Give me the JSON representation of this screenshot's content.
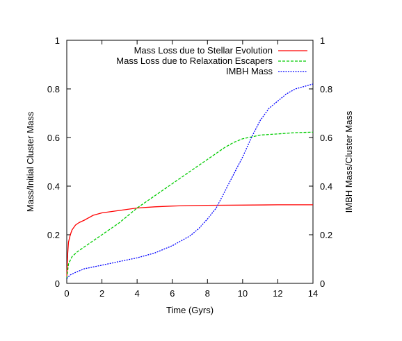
{
  "chart_data": {
    "type": "line",
    "xlabel": "Time (Gyrs)",
    "ylabel": "Mass/Initial Cluster Mass",
    "y2label": "IMBH Mass/Cluster Mass",
    "xlim": [
      0,
      14
    ],
    "ylim": [
      0,
      1
    ],
    "y2lim": [
      0,
      1
    ],
    "xticks": [
      "0",
      "2",
      "4",
      "6",
      "8",
      "10",
      "12",
      "14"
    ],
    "yticks": [
      "0",
      "0.2",
      "0.4",
      "0.6",
      "0.8",
      "1"
    ],
    "y2ticks": [
      "0",
      "0.2",
      "0.4",
      "0.6",
      "0.8",
      "1"
    ],
    "grid": false,
    "legend_position": "top-right",
    "series": [
      {
        "name": "Mass Loss due to Stellar Evolution",
        "color": "#ff0000",
        "style": "solid",
        "axis": "left",
        "x": [
          0,
          0.05,
          0.1,
          0.2,
          0.3,
          0.5,
          0.7,
          1.0,
          1.5,
          2.0,
          3.0,
          4.0,
          5.0,
          6.0,
          7.0,
          8.0,
          10.0,
          12.0,
          14.0
        ],
        "y": [
          0.02,
          0.12,
          0.17,
          0.2,
          0.22,
          0.24,
          0.25,
          0.26,
          0.28,
          0.29,
          0.3,
          0.31,
          0.315,
          0.318,
          0.32,
          0.321,
          0.322,
          0.323,
          0.323
        ]
      },
      {
        "name": "Mass Loss due to Relaxation Escapers",
        "color": "#00cc00",
        "style": "dashed",
        "axis": "left",
        "x": [
          0,
          0.1,
          0.3,
          0.6,
          1.0,
          2.0,
          3.0,
          4.0,
          5.0,
          6.0,
          7.0,
          8.0,
          9.0,
          9.5,
          10.0,
          11.0,
          12.0,
          13.0,
          14.0
        ],
        "y": [
          0.02,
          0.08,
          0.11,
          0.13,
          0.15,
          0.2,
          0.25,
          0.31,
          0.36,
          0.41,
          0.46,
          0.51,
          0.56,
          0.58,
          0.595,
          0.61,
          0.615,
          0.62,
          0.622
        ]
      },
      {
        "name": "IMBH Mass",
        "color": "#0000ff",
        "style": "dotted",
        "axis": "right",
        "x": [
          0,
          0.2,
          0.5,
          1.0,
          2.0,
          3.0,
          4.0,
          5.0,
          6.0,
          7.0,
          7.5,
          8.0,
          8.5,
          9.0,
          9.5,
          10.0,
          10.5,
          11.0,
          11.5,
          12.0,
          12.5,
          13.0,
          13.5,
          14.0
        ],
        "y": [
          0.02,
          0.035,
          0.045,
          0.06,
          0.075,
          0.09,
          0.105,
          0.125,
          0.155,
          0.195,
          0.225,
          0.265,
          0.31,
          0.38,
          0.45,
          0.52,
          0.6,
          0.67,
          0.72,
          0.75,
          0.78,
          0.8,
          0.81,
          0.82
        ]
      }
    ]
  }
}
